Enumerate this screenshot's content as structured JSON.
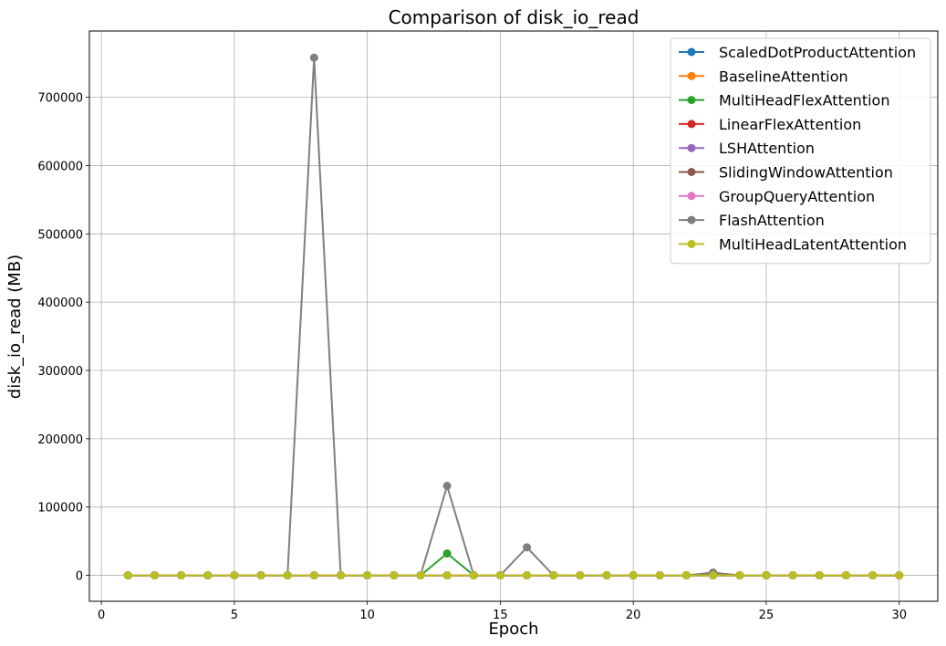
{
  "chart_data": {
    "type": "line",
    "title": "Comparison of disk_io_read",
    "xlabel": "Epoch",
    "ylabel": "disk_io_read (MB)",
    "xlim": [
      -0.45,
      31.45
    ],
    "ylim": [
      -38000,
      797000
    ],
    "xticks": [
      0,
      5,
      10,
      15,
      20,
      25,
      30
    ],
    "yticks": [
      0,
      100000,
      200000,
      300000,
      400000,
      500000,
      600000,
      700000
    ],
    "grid": true,
    "legend_position": "top-right",
    "x": [
      1,
      2,
      3,
      4,
      5,
      6,
      7,
      8,
      9,
      10,
      11,
      12,
      13,
      14,
      15,
      16,
      17,
      18,
      19,
      20,
      21,
      22,
      23,
      24,
      25,
      26,
      27,
      28,
      29,
      30
    ],
    "series": [
      {
        "name": "ScaledDotProductAttention",
        "color": "#1f77b4",
        "values": [
          0,
          0,
          0,
          0,
          0,
          0,
          0,
          0,
          0,
          0,
          0,
          0,
          0,
          0,
          0,
          0,
          0,
          0,
          0,
          0,
          0,
          0,
          0,
          0,
          0,
          0,
          0,
          0,
          0,
          0
        ]
      },
      {
        "name": "BaselineAttention",
        "color": "#ff7f0e",
        "values": [
          0,
          0,
          0,
          0,
          0,
          0,
          0,
          0,
          0,
          0,
          0,
          0,
          0,
          0,
          0,
          0,
          0,
          0,
          0,
          0,
          0,
          0,
          0,
          0,
          0,
          0,
          0,
          0,
          0,
          0
        ]
      },
      {
        "name": "MultiHeadFlexAttention",
        "color": "#2ca02c",
        "values": [
          0,
          0,
          0,
          0,
          0,
          0,
          0,
          0,
          0,
          0,
          0,
          0,
          32000,
          0,
          0,
          0,
          0,
          0,
          0,
          0,
          0,
          0,
          0,
          0,
          0,
          0,
          0,
          0,
          0,
          0
        ]
      },
      {
        "name": "LinearFlexAttention",
        "color": "#d62728",
        "values": [
          0,
          0,
          0,
          0,
          0,
          0,
          0,
          0,
          0,
          0,
          0,
          0,
          0,
          0,
          0,
          0,
          0,
          0,
          0,
          0,
          0,
          0,
          0,
          0,
          0,
          0,
          0,
          0,
          0,
          0
        ]
      },
      {
        "name": "LSHAttention",
        "color": "#9467bd",
        "values": [
          0,
          0,
          0,
          0,
          0,
          0,
          0,
          0,
          0,
          0,
          0,
          0,
          0,
          0,
          0,
          0,
          0,
          0,
          0,
          0,
          0,
          0,
          0,
          0,
          0,
          0,
          0,
          0,
          0,
          0
        ]
      },
      {
        "name": "SlidingWindowAttention",
        "color": "#8c564b",
        "values": [
          0,
          0,
          0,
          0,
          0,
          0,
          0,
          0,
          0,
          0,
          0,
          0,
          0,
          0,
          0,
          0,
          0,
          0,
          0,
          0,
          0,
          0,
          4000,
          0,
          0,
          0,
          0,
          0,
          0,
          0
        ]
      },
      {
        "name": "GroupQueryAttention",
        "color": "#e377c2",
        "values": [
          0,
          0,
          0,
          0,
          0,
          0,
          0,
          0,
          0,
          0,
          0,
          0,
          0,
          0,
          0,
          0,
          0,
          0,
          0,
          0,
          0,
          0,
          0,
          0,
          0,
          0,
          0,
          0,
          0,
          0
        ]
      },
      {
        "name": "FlashAttention",
        "color": "#7f7f7f",
        "values": [
          0,
          0,
          0,
          0,
          0,
          0,
          0,
          758000,
          0,
          0,
          0,
          0,
          131000,
          0,
          0,
          41000,
          0,
          0,
          0,
          0,
          0,
          0,
          3000,
          0,
          0,
          0,
          0,
          0,
          0,
          0
        ]
      },
      {
        "name": "MultiHeadLatentAttention",
        "color": "#bcbd22",
        "values": [
          0,
          0,
          0,
          0,
          0,
          0,
          0,
          0,
          0,
          0,
          0,
          0,
          0,
          0,
          0,
          0,
          0,
          0,
          0,
          0,
          0,
          0,
          0,
          0,
          0,
          0,
          0,
          0,
          0,
          0
        ]
      }
    ]
  }
}
